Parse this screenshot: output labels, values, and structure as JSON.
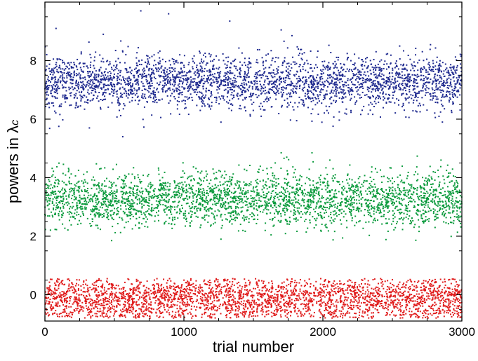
{
  "chart_data": {
    "type": "scatter",
    "title": "",
    "xlabel": "trial number",
    "ylabel_main": "powers in ",
    "ylabel_symbol": "λ",
    "ylabel_subscript": "c",
    "xlim": [
      0,
      3000
    ],
    "ylim": [
      -0.9,
      10.0
    ],
    "x_ticks": [
      0,
      1000,
      2000,
      3000
    ],
    "x_tick_labels": [
      "0",
      "1000",
      "2000",
      "3000"
    ],
    "y_ticks": [
      0,
      2,
      4,
      6,
      8
    ],
    "y_tick_labels": [
      "0",
      "2",
      "4",
      "6",
      "8"
    ],
    "grid": false,
    "legend": "none",
    "n_points_per_series": 3000,
    "series": [
      {
        "color": "#1f2a8f",
        "center": 7.25,
        "spread": 0.45,
        "min": 5.4,
        "max": 9.7,
        "outliers": [
          [
            690,
            9.7
          ],
          [
            890,
            9.6
          ],
          [
            1330,
            9.35
          ],
          [
            560,
            5.4
          ],
          [
            320,
            5.7
          ],
          [
            2860,
            5.9
          ],
          [
            80,
            9.1
          ],
          [
            1700,
            9.05
          ],
          [
            420,
            8.9
          ]
        ]
      },
      {
        "color": "#0a9a3c",
        "center": 3.25,
        "spread": 0.45,
        "min": 1.85,
        "max": 4.85,
        "outliers": [
          [
            1700,
            4.85
          ],
          [
            480,
            1.85
          ],
          [
            1740,
            4.7
          ],
          [
            2050,
            4.6
          ],
          [
            2850,
            4.6
          ]
        ]
      },
      {
        "color": "#e01b1b",
        "center": -0.15,
        "spread": 0.38,
        "min": -0.8,
        "max": 0.7,
        "outliers": []
      }
    ]
  }
}
